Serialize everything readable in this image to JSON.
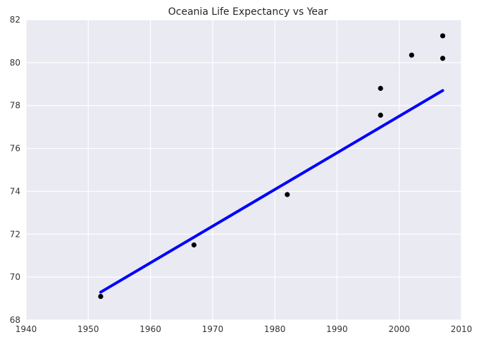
{
  "chart_data": {
    "type": "scatter",
    "title": "Oceania Life Expectancy vs Year",
    "xlabel": "",
    "ylabel": "",
    "xlim": [
      1940,
      2010
    ],
    "ylim": [
      68,
      82
    ],
    "x_ticks": [
      1940,
      1950,
      1960,
      1970,
      1980,
      1990,
      2000,
      2010
    ],
    "y_ticks": [
      68,
      70,
      72,
      74,
      76,
      78,
      80,
      82
    ],
    "grid": true,
    "background_color": "#EAEAF2",
    "grid_color": "#FFFFFF",
    "series": [
      {
        "type": "scatter",
        "color": "#000000",
        "points": [
          {
            "x": 1952,
            "y": 69.1
          },
          {
            "x": 1967,
            "y": 71.5
          },
          {
            "x": 1982,
            "y": 73.85
          },
          {
            "x": 1997,
            "y": 78.8
          },
          {
            "x": 1997,
            "y": 77.55
          },
          {
            "x": 2002,
            "y": 80.35
          },
          {
            "x": 2007,
            "y": 81.25
          },
          {
            "x": 2007,
            "y": 80.2
          }
        ]
      },
      {
        "type": "line",
        "color": "#0000FF",
        "points": [
          {
            "x": 1952,
            "y": 69.3
          },
          {
            "x": 2007,
            "y": 78.7
          }
        ]
      }
    ]
  }
}
